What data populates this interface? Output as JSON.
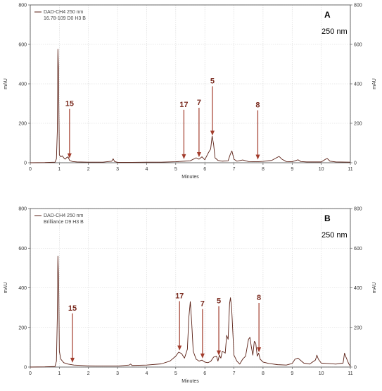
{
  "colors": {
    "trace": "#5a1f14",
    "arrow": "#a23c2c",
    "grid": "#d6d6d6",
    "axis": "#444444"
  },
  "chart_data": [
    {
      "type": "line",
      "panel": "A",
      "wavelength_label": "250 nm",
      "legend": [
        "DAD-CH4 250 nm",
        "16.78-109 D0 H3 B"
      ],
      "xlabel": "Minutes",
      "ylabel_left": "mAU",
      "ylabel_right": "mAU",
      "xlim": [
        0,
        11
      ],
      "ylim": [
        0,
        800
      ],
      "xticks": [
        0,
        1,
        2,
        3,
        4,
        5,
        6,
        7,
        8,
        9,
        10,
        11
      ],
      "yticks": [
        0,
        200,
        400,
        600,
        800
      ],
      "grid": true,
      "series": [
        {
          "x": [
            0.0,
            0.5,
            0.85,
            0.9,
            0.93,
            0.95,
            0.97,
            1.0,
            1.05,
            1.1,
            1.15,
            1.2,
            1.25,
            1.3,
            1.35,
            1.45,
            1.6,
            2.0,
            2.5,
            2.8,
            2.85,
            2.9,
            3.0,
            3.5,
            4.0,
            4.5,
            5.0,
            5.3,
            5.5,
            5.7,
            5.8,
            5.9,
            6.0,
            6.1,
            6.2,
            6.25,
            6.3,
            6.35,
            6.45,
            6.6,
            6.8,
            6.88,
            6.93,
            7.0,
            7.1,
            7.3,
            7.5,
            7.8,
            8.0,
            8.3,
            8.5,
            8.55,
            8.65,
            8.8,
            9.0,
            9.2,
            9.3,
            9.5,
            10.0,
            10.15,
            10.2,
            10.3,
            10.5,
            11.0
          ],
          "y": [
            0,
            1,
            3,
            20,
            160,
            575,
            470,
            40,
            30,
            35,
            25,
            18,
            26,
            30,
            12,
            6,
            4,
            3,
            3,
            8,
            20,
            6,
            2,
            2,
            3,
            3,
            5,
            8,
            10,
            25,
            18,
            30,
            15,
            45,
            70,
            135,
            95,
            25,
            12,
            8,
            10,
            45,
            60,
            18,
            8,
            14,
            6,
            5,
            7,
            12,
            28,
            32,
            18,
            6,
            5,
            15,
            6,
            4,
            4,
            18,
            22,
            8,
            4,
            3
          ]
        }
      ],
      "annotations": [
        {
          "label": "15",
          "x": 1.35
        },
        {
          "label": "17",
          "x": 5.28
        },
        {
          "label": "7",
          "x": 5.8
        },
        {
          "label": "5",
          "x": 6.26
        },
        {
          "label": "8",
          "x": 7.82
        }
      ]
    },
    {
      "type": "line",
      "panel": "B",
      "wavelength_label": "250 nm",
      "legend": [
        "DAD-CH4 250 nm",
        "Brilliance D9 H3 B"
      ],
      "xlabel": "Minutes",
      "ylabel_left": "mAU",
      "ylabel_right": "mAU",
      "xlim": [
        0,
        11
      ],
      "ylim": [
        0,
        800
      ],
      "xticks": [
        0,
        1,
        2,
        3,
        4,
        5,
        6,
        7,
        8,
        9,
        10,
        11
      ],
      "yticks": [
        0,
        200,
        400,
        600,
        800
      ],
      "grid": true,
      "series": [
        {
          "x": [
            0.0,
            0.5,
            0.85,
            0.9,
            0.93,
            0.95,
            0.98,
            1.0,
            1.05,
            1.15,
            1.3,
            1.5,
            2.0,
            2.5,
            3.0,
            3.4,
            3.45,
            3.5,
            4.0,
            4.5,
            4.8,
            5.0,
            5.1,
            5.2,
            5.3,
            5.4,
            5.45,
            5.5,
            5.55,
            5.6,
            5.7,
            5.8,
            5.9,
            6.0,
            6.1,
            6.2,
            6.3,
            6.4,
            6.45,
            6.5,
            6.55,
            6.6,
            6.7,
            6.75,
            6.8,
            6.85,
            6.88,
            6.92,
            7.0,
            7.1,
            7.2,
            7.3,
            7.4,
            7.5,
            7.55,
            7.6,
            7.65,
            7.7,
            7.75,
            7.8,
            7.85,
            7.9,
            8.0,
            8.2,
            8.5,
            8.8,
            9.0,
            9.1,
            9.2,
            9.4,
            9.6,
            9.8,
            9.85,
            9.9,
            10.0,
            10.2,
            10.5,
            10.75,
            10.8,
            10.85,
            10.95,
            11.0
          ],
          "y": [
            0,
            1,
            3,
            30,
            250,
            560,
            400,
            80,
            40,
            22,
            15,
            10,
            6,
            5,
            5,
            10,
            15,
            8,
            10,
            16,
            30,
            55,
            75,
            68,
            45,
            90,
            250,
            330,
            220,
            80,
            40,
            30,
            35,
            25,
            22,
            28,
            50,
            55,
            30,
            60,
            45,
            80,
            70,
            160,
            140,
            320,
            350,
            300,
            60,
            30,
            15,
            40,
            55,
            140,
            150,
            100,
            60,
            130,
            120,
            55,
            70,
            40,
            25,
            18,
            12,
            10,
            18,
            40,
            45,
            20,
            15,
            35,
            60,
            40,
            20,
            18,
            15,
            20,
            70,
            50,
            15,
            5
          ]
        }
      ],
      "annotations": [
        {
          "label": "15",
          "x": 1.45
        },
        {
          "label": "17",
          "x": 5.13
        },
        {
          "label": "7",
          "x": 5.92
        },
        {
          "label": "5",
          "x": 6.48
        },
        {
          "label": "8",
          "x": 7.86
        }
      ]
    }
  ]
}
